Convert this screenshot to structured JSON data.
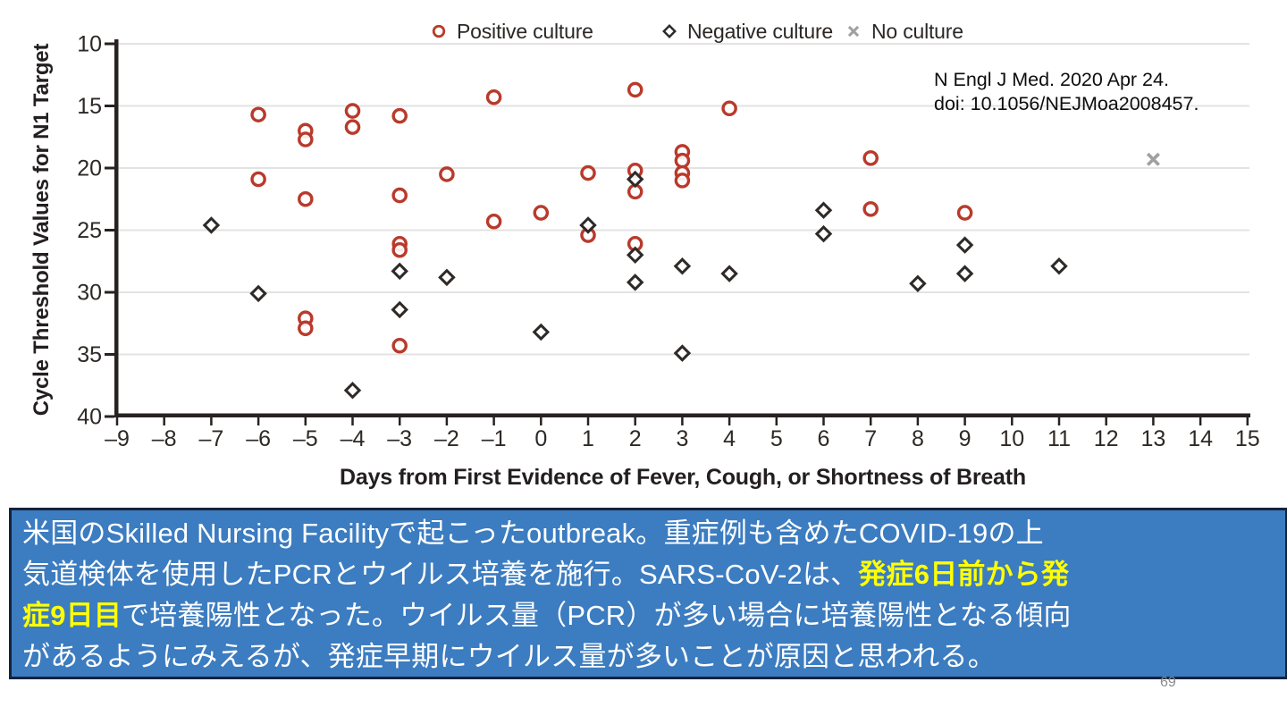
{
  "page": {
    "page_number": "69"
  },
  "citation": {
    "line1": "N Engl J Med. 2020 Apr 24.",
    "line2": "doi: 10.1056/NEJMoa2008457."
  },
  "chart_data": {
    "type": "scatter",
    "title": "",
    "xlabel": "Days from First Evidence of Fever, Cough, or Shortness of Breath",
    "ylabel": "Cycle Threshold Values for N1 Target",
    "xlim": [
      -9,
      15
    ],
    "ylim": [
      40,
      10
    ],
    "y_axis_inverted": true,
    "grid": "horizontal",
    "legend_position": "top-center",
    "x_ticks": [
      -9,
      -8,
      -7,
      -6,
      -5,
      -4,
      -3,
      -2,
      -1,
      0,
      1,
      2,
      3,
      4,
      5,
      6,
      7,
      8,
      9,
      10,
      11,
      12,
      13,
      14,
      15
    ],
    "x_tick_labels": [
      "–9",
      "–8",
      "–7",
      "–6",
      "–5",
      "–4",
      "–3",
      "–2",
      "–1",
      "0",
      "1",
      "2",
      "3",
      "4",
      "5",
      "6",
      "7",
      "8",
      "9",
      "10",
      "11",
      "12",
      "13",
      "14",
      "15"
    ],
    "y_ticks": [
      10,
      15,
      20,
      25,
      30,
      35,
      40
    ],
    "y_tick_labels": [
      "10",
      "15",
      "20",
      "25",
      "30",
      "35",
      "40"
    ],
    "series": [
      {
        "name": "Positive culture",
        "marker": "open-circle",
        "color": "#b93a2b",
        "points": [
          [
            -6,
            15.7
          ],
          [
            -6,
            20.9
          ],
          [
            -5,
            17.0
          ],
          [
            -5,
            17.7
          ],
          [
            -5,
            22.5
          ],
          [
            -5,
            32.1
          ],
          [
            -5,
            32.9
          ],
          [
            -4,
            15.4
          ],
          [
            -4,
            16.7
          ],
          [
            -3,
            15.8
          ],
          [
            -3,
            22.2
          ],
          [
            -3,
            26.1
          ],
          [
            -3,
            26.6
          ],
          [
            -3,
            34.3
          ],
          [
            -2,
            20.5
          ],
          [
            -1,
            14.3
          ],
          [
            -1,
            24.3
          ],
          [
            0,
            23.6
          ],
          [
            1,
            20.4
          ],
          [
            1,
            25.4
          ],
          [
            2,
            13.7
          ],
          [
            2,
            20.2
          ],
          [
            2,
            21.9
          ],
          [
            2,
            26.1
          ],
          [
            3,
            18.7
          ],
          [
            3,
            19.4
          ],
          [
            3,
            20.4
          ],
          [
            3,
            21.0
          ],
          [
            4,
            15.2
          ],
          [
            7,
            19.2
          ],
          [
            7,
            23.3
          ],
          [
            9,
            23.6
          ]
        ]
      },
      {
        "name": "Negative culture",
        "marker": "open-diamond",
        "color": "#2e2a28",
        "points": [
          [
            -7,
            24.6
          ],
          [
            -6,
            30.1
          ],
          [
            -4,
            37.9
          ],
          [
            -3,
            28.3
          ],
          [
            -3,
            31.4
          ],
          [
            -2,
            28.8
          ],
          [
            0,
            33.2
          ],
          [
            1,
            24.6
          ],
          [
            2,
            20.9
          ],
          [
            2,
            27.0
          ],
          [
            2,
            29.2
          ],
          [
            3,
            27.9
          ],
          [
            3,
            34.9
          ],
          [
            4,
            28.5
          ],
          [
            6,
            23.4
          ],
          [
            6,
            25.3
          ],
          [
            8,
            29.3
          ],
          [
            9,
            26.2
          ],
          [
            9,
            28.5
          ],
          [
            11,
            27.9
          ]
        ]
      },
      {
        "name": "No culture",
        "marker": "x",
        "color": "#a0a0a0",
        "points": [
          [
            13,
            19.3
          ]
        ]
      }
    ],
    "axis_color": "#272221",
    "gridline_color": "#e3e3e3",
    "tick_label_color": "#2d2926"
  },
  "caption": {
    "background": "#3c7cc0",
    "highlight_color": "#ffff00",
    "lines": [
      [
        {
          "text": "米国のSkilled Nursing Facilityで起こったoutbreak。重症例も含めたCOVID-19の上",
          "highlight": false
        }
      ],
      [
        {
          "text": "気道検体を使用したPCRとウイルス培養を施行。SARS-CoV-2は、",
          "highlight": false
        },
        {
          "text": "発症6日前から発",
          "highlight": true
        }
      ],
      [
        {
          "text": "症9日目",
          "highlight": true
        },
        {
          "text": "で培養陽性となった。ウイルス量（PCR）が多い場合に培養陽性となる傾向",
          "highlight": false
        }
      ],
      [
        {
          "text": "があるようにみえるが、発症早期にウイルス量が多いことが原因と思われる。",
          "highlight": false
        }
      ]
    ]
  }
}
